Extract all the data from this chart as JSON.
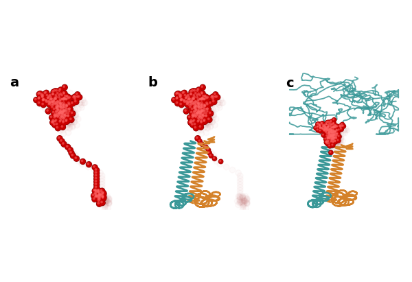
{
  "panels": [
    "a",
    "b",
    "c"
  ],
  "panel_label_fontsize": 14,
  "panel_label_fontweight": "bold",
  "background_color": "#ffffff",
  "colors": {
    "red_sphere": "#cc0000",
    "red_sphere_light": "#ff3333",
    "red_sphere_dark": "#880000",
    "teal": "#3a9898",
    "teal_light": "#5ababa",
    "orange": "#d4822a",
    "orange_light": "#e8a050",
    "shadow_red": "#cc8888"
  },
  "fig_width": 6.0,
  "fig_height": 4.11
}
